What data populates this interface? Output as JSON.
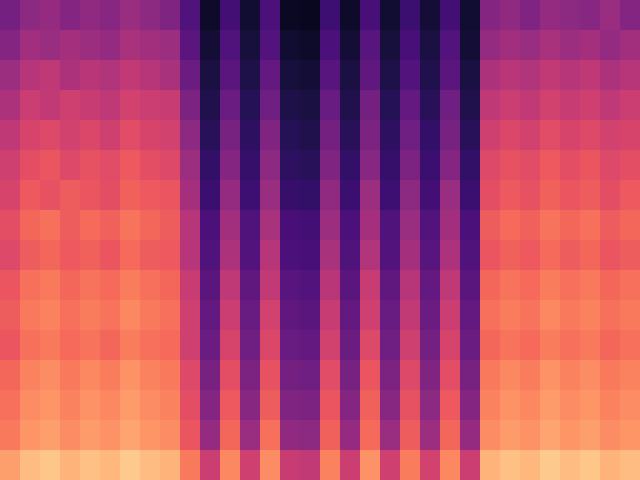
{
  "chart_data": {
    "type": "heatmap",
    "color": "magma",
    "tick_labels": false,
    "zlim": [
      0,
      100
    ],
    "cells": [
      [
        34,
        40,
        42,
        38,
        41,
        39,
        43,
        40,
        37,
        25,
        8,
        22,
        9,
        24,
        7,
        6,
        21,
        8,
        23,
        9,
        20,
        10,
        22,
        9,
        38,
        41,
        37,
        42,
        40,
        39,
        43,
        38
      ],
      [
        38,
        45,
        43,
        46,
        44,
        42,
        47,
        45,
        44,
        28,
        10,
        25,
        11,
        26,
        9,
        8,
        24,
        10,
        27,
        11,
        23,
        12,
        26,
        10,
        42,
        45,
        43,
        47,
        44,
        46,
        42,
        45
      ],
      [
        44,
        50,
        52,
        48,
        51,
        49,
        53,
        50,
        47,
        32,
        12,
        28,
        13,
        30,
        11,
        10,
        27,
        12,
        29,
        13,
        26,
        14,
        28,
        12,
        48,
        51,
        49,
        53,
        50,
        52,
        48,
        50
      ],
      [
        48,
        55,
        53,
        56,
        54,
        52,
        57,
        55,
        54,
        36,
        14,
        32,
        15,
        33,
        13,
        12,
        31,
        14,
        34,
        15,
        30,
        16,
        33,
        14,
        52,
        55,
        53,
        57,
        54,
        56,
        52,
        55
      ],
      [
        52,
        58,
        60,
        57,
        59,
        56,
        61,
        58,
        57,
        40,
        16,
        35,
        17,
        37,
        15,
        14,
        34,
        16,
        36,
        17,
        33,
        18,
        35,
        16,
        56,
        59,
        57,
        61,
        58,
        60,
        57,
        58
      ],
      [
        56,
        62,
        64,
        60,
        63,
        61,
        65,
        62,
        60,
        44,
        18,
        38,
        19,
        40,
        17,
        16,
        37,
        18,
        39,
        19,
        36,
        20,
        38,
        18,
        60,
        63,
        61,
        65,
        62,
        64,
        60,
        62
      ],
      [
        58,
        65,
        63,
        66,
        64,
        62,
        67,
        65,
        64,
        46,
        20,
        42,
        21,
        43,
        19,
        18,
        41,
        20,
        44,
        21,
        40,
        22,
        43,
        20,
        62,
        65,
        63,
        67,
        64,
        66,
        62,
        65
      ],
      [
        62,
        68,
        70,
        66,
        69,
        67,
        71,
        68,
        66,
        50,
        24,
        45,
        25,
        47,
        23,
        22,
        44,
        24,
        46,
        25,
        43,
        26,
        45,
        24,
        66,
        69,
        67,
        71,
        68,
        70,
        66,
        68
      ],
      [
        60,
        66,
        68,
        65,
        67,
        64,
        69,
        66,
        65,
        50,
        25,
        48,
        26,
        50,
        24,
        23,
        47,
        25,
        49,
        26,
        46,
        27,
        48,
        25,
        64,
        67,
        65,
        69,
        66,
        68,
        64,
        66
      ],
      [
        64,
        70,
        72,
        68,
        71,
        69,
        73,
        70,
        68,
        54,
        28,
        52,
        29,
        53,
        27,
        26,
        51,
        28,
        54,
        29,
        50,
        30,
        52,
        28,
        68,
        71,
        69,
        73,
        70,
        72,
        68,
        70
      ],
      [
        66,
        72,
        74,
        70,
        73,
        71,
        75,
        72,
        70,
        56,
        30,
        55,
        31,
        57,
        29,
        28,
        54,
        30,
        56,
        31,
        53,
        32,
        55,
        30,
        70,
        73,
        71,
        75,
        72,
        74,
        70,
        72
      ],
      [
        64,
        70,
        72,
        69,
        71,
        68,
        73,
        70,
        69,
        56,
        32,
        58,
        33,
        59,
        31,
        30,
        57,
        32,
        60,
        33,
        56,
        34,
        58,
        32,
        68,
        71,
        69,
        73,
        70,
        72,
        68,
        70
      ],
      [
        68,
        74,
        76,
        72,
        75,
        73,
        77,
        74,
        72,
        60,
        35,
        62,
        36,
        63,
        34,
        33,
        61,
        35,
        64,
        36,
        60,
        37,
        62,
        35,
        72,
        75,
        73,
        77,
        74,
        76,
        72,
        74
      ],
      [
        70,
        76,
        78,
        74,
        77,
        75,
        79,
        76,
        74,
        62,
        38,
        65,
        39,
        66,
        37,
        36,
        64,
        38,
        67,
        39,
        63,
        40,
        65,
        38,
        74,
        77,
        75,
        79,
        76,
        78,
        74,
        76
      ],
      [
        72,
        78,
        80,
        76,
        79,
        77,
        81,
        78,
        76,
        64,
        42,
        68,
        43,
        70,
        41,
        40,
        67,
        42,
        69,
        43,
        66,
        44,
        68,
        42,
        76,
        79,
        77,
        81,
        78,
        80,
        76,
        78
      ],
      [
        80,
        86,
        88,
        84,
        87,
        85,
        89,
        86,
        84,
        72,
        55,
        75,
        56,
        76,
        54,
        53,
        74,
        55,
        77,
        56,
        73,
        57,
        75,
        55,
        84,
        87,
        85,
        89,
        86,
        88,
        84,
        86
      ]
    ]
  }
}
